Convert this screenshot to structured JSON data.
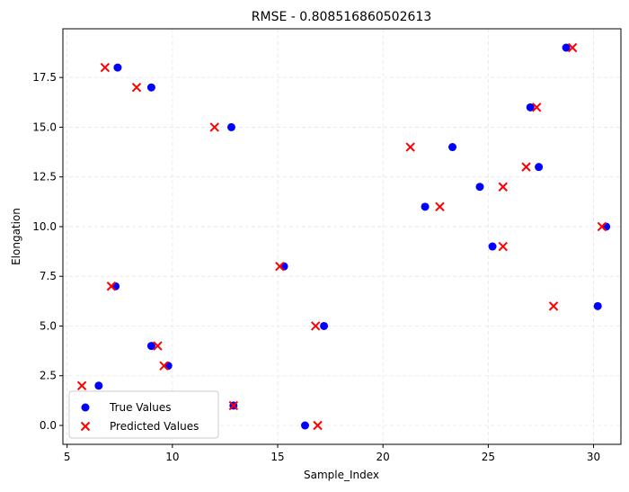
{
  "chart_data": {
    "type": "scatter",
    "title": "RMSE - 0.808516860502613",
    "xlabel": "Sample_Index",
    "ylabel": "Elongation",
    "xlim": [
      4.8,
      31.3
    ],
    "ylim": [
      -0.95,
      19.95
    ],
    "xticks": [
      5,
      10,
      15,
      20,
      25,
      30
    ],
    "xtick_labels": [
      "5",
      "10",
      "15",
      "20",
      "25",
      "30"
    ],
    "yticks": [
      0.0,
      2.5,
      5.0,
      7.5,
      10.0,
      12.5,
      15.0,
      17.5
    ],
    "ytick_labels": [
      "0.0",
      "2.5",
      "5.0",
      "7.5",
      "10.0",
      "12.5",
      "15.0",
      "17.5"
    ],
    "grid": true,
    "legend_position": "lower-left",
    "series": [
      {
        "name": "True Values",
        "marker": "circle",
        "color": "#0000ff",
        "points": [
          [
            7.4,
            18
          ],
          [
            9.0,
            17
          ],
          [
            12.8,
            15
          ],
          [
            7.3,
            7
          ],
          [
            15.3,
            8
          ],
          [
            9.0,
            4
          ],
          [
            9.8,
            3
          ],
          [
            6.5,
            2
          ],
          [
            12.9,
            1
          ],
          [
            16.3,
            0
          ],
          [
            17.2,
            5
          ],
          [
            22.0,
            11
          ],
          [
            23.3,
            14
          ],
          [
            24.6,
            12
          ],
          [
            25.2,
            9
          ],
          [
            27.0,
            16
          ],
          [
            27.4,
            13
          ],
          [
            28.7,
            19
          ],
          [
            30.6,
            10
          ],
          [
            30.2,
            6
          ]
        ]
      },
      {
        "name": "Predicted Values",
        "marker": "x",
        "color": "#ff0000",
        "points": [
          [
            6.8,
            18
          ],
          [
            8.3,
            17
          ],
          [
            12.0,
            15
          ],
          [
            7.1,
            7
          ],
          [
            15.1,
            8
          ],
          [
            9.3,
            4
          ],
          [
            9.6,
            3
          ],
          [
            5.7,
            2
          ],
          [
            12.9,
            1
          ],
          [
            16.9,
            0
          ],
          [
            16.8,
            5
          ],
          [
            22.7,
            11
          ],
          [
            21.3,
            14
          ],
          [
            25.7,
            12
          ],
          [
            25.7,
            9
          ],
          [
            27.3,
            16
          ],
          [
            26.8,
            13
          ],
          [
            29.0,
            19
          ],
          [
            30.4,
            10
          ],
          [
            28.1,
            6
          ]
        ]
      }
    ]
  }
}
